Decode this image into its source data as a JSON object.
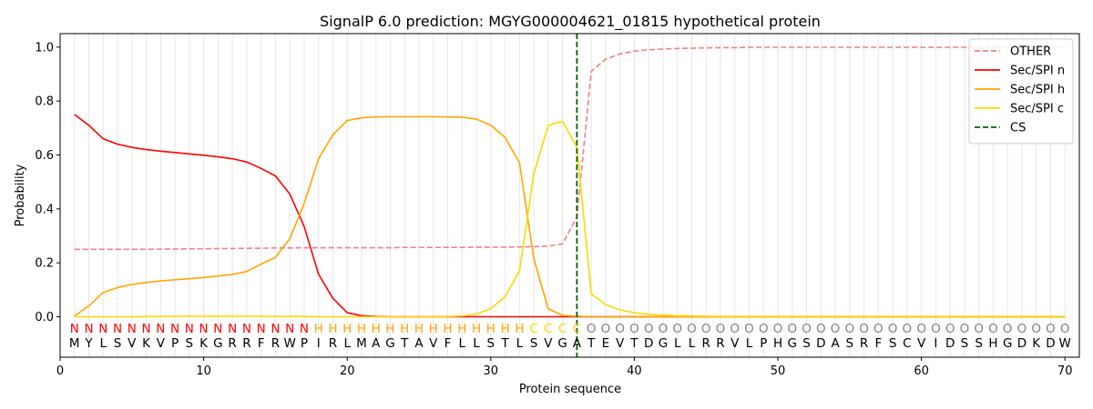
{
  "chart_data": {
    "type": "line",
    "title": "SignalP 6.0 prediction: MGYG000004621_01815 hypothetical protein",
    "xlabel": "Protein sequence",
    "ylabel": "Probability",
    "xlim": [
      0,
      71
    ],
    "ylim": [
      -0.15,
      1.05
    ],
    "x_ticks": [
      0,
      10,
      20,
      30,
      40,
      50,
      60,
      70
    ],
    "y_ticks": [
      0.0,
      0.2,
      0.4,
      0.6,
      0.8,
      1.0
    ],
    "x_tick_labels": [
      "0",
      "10",
      "20",
      "30",
      "40",
      "50",
      "60",
      "70"
    ],
    "y_tick_labels": [
      "0.0",
      "0.2",
      "0.4",
      "0.6",
      "0.8",
      "1.0"
    ],
    "grid": "vertical lines at every residue",
    "legend_position": "top-right",
    "sequence": "MYLSVKVPSKGRRFRWPIRLMAGTAVFLLSTLSVGATEVTDGLLRRVLPHGSDASRFSCVIDSSHGDKDW",
    "labels": "NNNNNNNNNNNNNNNNNHHHHHHHHHHHHHHHCCCCOOOOOOOOOOOOOOOOOOOOOOOOOOOOOOOOOO",
    "label_colors": {
      "N": "#ff0000",
      "H": "#ffa500",
      "C": "#ffd700",
      "O": "#808080"
    },
    "cleavage_site": 36,
    "series": [
      {
        "name": "OTHER",
        "color": "#f08080",
        "style": "dashed",
        "values": [
          0.25,
          0.25,
          0.25,
          0.25,
          0.25,
          0.25,
          0.251,
          0.251,
          0.252,
          0.252,
          0.253,
          0.253,
          0.254,
          0.254,
          0.255,
          0.255,
          0.256,
          0.256,
          0.256,
          0.256,
          0.256,
          0.256,
          0.256,
          0.257,
          0.257,
          0.257,
          0.257,
          0.257,
          0.258,
          0.258,
          0.258,
          0.259,
          0.26,
          0.262,
          0.27,
          0.37,
          0.91,
          0.955,
          0.975,
          0.985,
          0.99,
          0.993,
          0.995,
          0.996,
          0.997,
          0.998,
          0.998,
          0.999,
          0.999,
          0.999,
          0.999,
          0.999,
          0.999,
          0.999,
          0.999,
          0.999,
          0.999,
          0.999,
          0.999,
          0.999,
          0.999,
          0.999,
          0.999,
          0.999,
          0.999,
          0.999,
          0.999,
          0.999,
          0.999,
          0.999
        ]
      },
      {
        "name": "Sec/SPI n",
        "color": "#ff0000",
        "style": "solid",
        "values": [
          0.75,
          0.71,
          0.66,
          0.64,
          0.628,
          0.62,
          0.614,
          0.609,
          0.604,
          0.599,
          0.593,
          0.586,
          0.574,
          0.55,
          0.522,
          0.455,
          0.335,
          0.158,
          0.068,
          0.015,
          0.004,
          0.001,
          0,
          0,
          0,
          0,
          0,
          0,
          0,
          0,
          0,
          0,
          0,
          0,
          0,
          0,
          0,
          0,
          0,
          0,
          0,
          0,
          0,
          0,
          0,
          0,
          0,
          0,
          0,
          0,
          0,
          0,
          0,
          0,
          0,
          0,
          0,
          0,
          0,
          0,
          0,
          0,
          0,
          0,
          0,
          0,
          0,
          0,
          0,
          0
        ]
      },
      {
        "name": "Sec/SPI h",
        "color": "#ffa500",
        "style": "solid",
        "values": [
          0.003,
          0.04,
          0.09,
          0.108,
          0.12,
          0.127,
          0.133,
          0.137,
          0.141,
          0.145,
          0.151,
          0.157,
          0.168,
          0.195,
          0.22,
          0.29,
          0.42,
          0.585,
          0.675,
          0.728,
          0.738,
          0.741,
          0.742,
          0.742,
          0.742,
          0.742,
          0.741,
          0.74,
          0.733,
          0.71,
          0.665,
          0.57,
          0.215,
          0.03,
          0.005,
          0.002,
          0,
          0,
          0,
          0,
          0,
          0,
          0,
          0,
          0,
          0,
          0,
          0,
          0,
          0,
          0,
          0,
          0,
          0,
          0,
          0,
          0,
          0,
          0,
          0,
          0,
          0,
          0,
          0,
          0,
          0,
          0,
          0,
          0,
          0
        ]
      },
      {
        "name": "Sec/SPI c",
        "color": "#ffd700",
        "style": "solid",
        "values": [
          0,
          0,
          0,
          0,
          0,
          0.001,
          0.001,
          0.002,
          0.002,
          0.002,
          0.002,
          0.002,
          0.002,
          0.002,
          0.001,
          0.001,
          0.001,
          0,
          0,
          0,
          0,
          0,
          0,
          0,
          0,
          0,
          0.001,
          0.003,
          0.01,
          0.03,
          0.075,
          0.17,
          0.53,
          0.71,
          0.725,
          0.63,
          0.085,
          0.045,
          0.025,
          0.015,
          0.009,
          0.006,
          0.004,
          0.003,
          0.002,
          0.001,
          0.001,
          0.001,
          0.001,
          0.001,
          0.001,
          0.001,
          0.001,
          0.001,
          0.001,
          0.001,
          0.001,
          0.001,
          0.001,
          0.001,
          0.001,
          0.001,
          0.001,
          0.001,
          0.001,
          0.001,
          0.001,
          0.001,
          0.001,
          0.001
        ]
      }
    ],
    "legend": [
      {
        "label": "OTHER",
        "color": "#f08080",
        "style": "dashed"
      },
      {
        "label": "Sec/SPI n",
        "color": "#ff0000",
        "style": "solid"
      },
      {
        "label": "Sec/SPI h",
        "color": "#ffa500",
        "style": "solid"
      },
      {
        "label": "Sec/SPI c",
        "color": "#ffd700",
        "style": "solid"
      },
      {
        "label": "CS",
        "color": "#006400",
        "style": "dashed"
      }
    ]
  }
}
